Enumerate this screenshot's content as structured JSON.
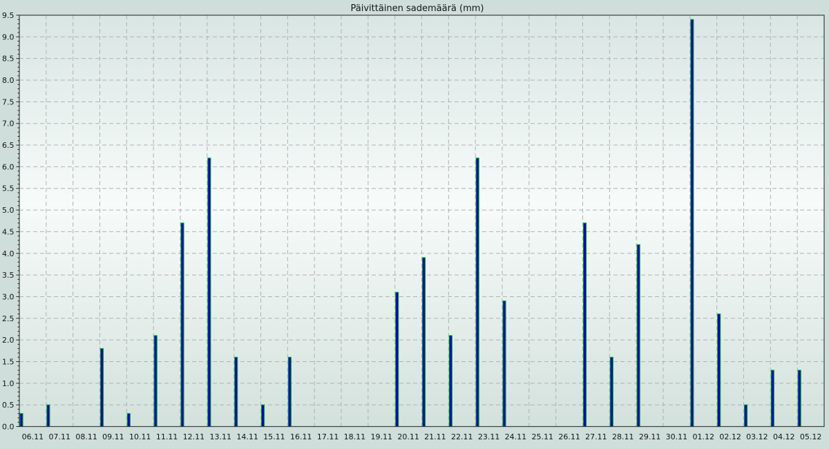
{
  "figure": {
    "background": "#cfdeda"
  },
  "chart_data": {
    "type": "bar",
    "title": "Päivittäinen sademäärä (mm)",
    "categories": [
      "06.11",
      "07.11",
      "08.11",
      "09.11",
      "10.11",
      "11.11",
      "12.11",
      "13.11",
      "14.11",
      "15.11",
      "16.11",
      "17.11",
      "18.11",
      "19.11",
      "20.11",
      "21.11",
      "22.11",
      "23.11",
      "24.11",
      "25.11",
      "26.11",
      "27.11",
      "28.11",
      "29.11",
      "30.11",
      "01.12",
      "02.12",
      "03.12",
      "04.12",
      "05.12"
    ],
    "values": [
      0.3,
      0.5,
      0,
      1.8,
      0.3,
      2.1,
      4.7,
      6.2,
      1.6,
      0.5,
      1.6,
      0,
      0,
      0,
      3.1,
      3.9,
      2.1,
      6.2,
      2.9,
      0,
      0,
      4.7,
      1.6,
      4.2,
      0,
      9.4,
      2.6,
      0.5,
      1.3,
      1.3
    ],
    "xlabel": "",
    "ylabel": "",
    "ylim": [
      0,
      9.5
    ],
    "ytick_step": 0.5,
    "ytick_minor_step": 0.1,
    "grid": true,
    "grid_style": "dashed",
    "legend": "none",
    "colors": {
      "bar_fill": "#0000cc",
      "bar_edge": "#00a000",
      "grid_line": "#b1b1b1",
      "spine": "#3d3d3d",
      "tick": "#222222",
      "plot_bg_top": "#d9e6e3",
      "plot_bg_mid": "#f7fbfa",
      "plot_bg_bottom": "#d3e1dc"
    }
  }
}
